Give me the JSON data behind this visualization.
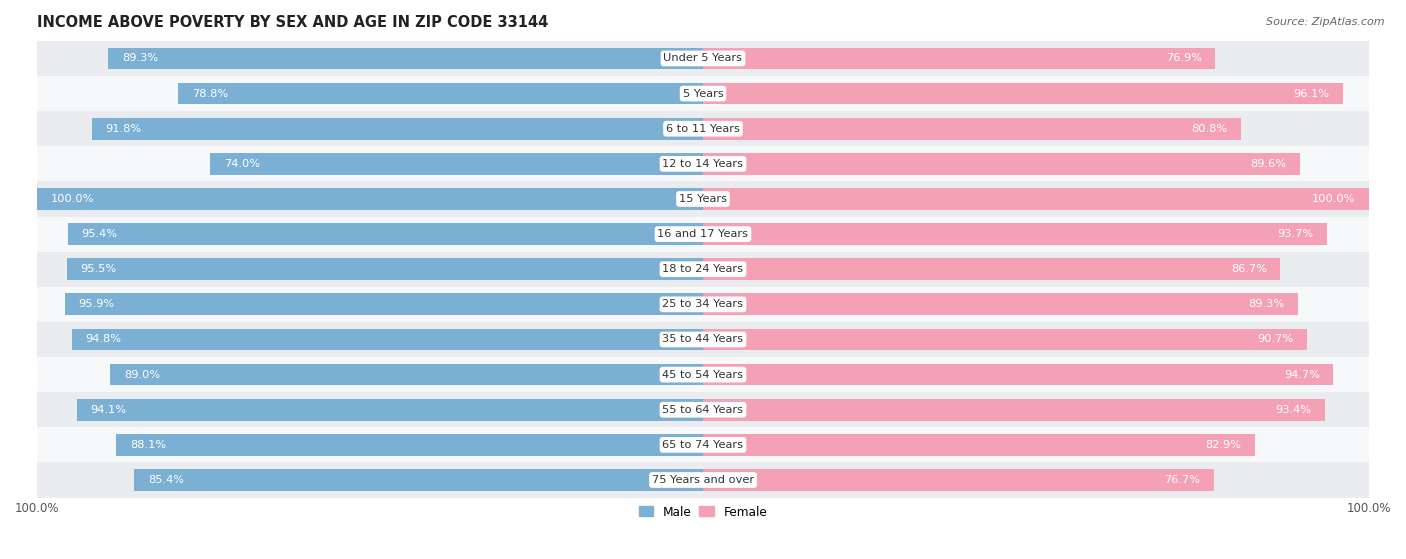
{
  "title": "INCOME ABOVE POVERTY BY SEX AND AGE IN ZIP CODE 33144",
  "source": "Source: ZipAtlas.com",
  "categories": [
    "Under 5 Years",
    "5 Years",
    "6 to 11 Years",
    "12 to 14 Years",
    "15 Years",
    "16 and 17 Years",
    "18 to 24 Years",
    "25 to 34 Years",
    "35 to 44 Years",
    "45 to 54 Years",
    "55 to 64 Years",
    "65 to 74 Years",
    "75 Years and over"
  ],
  "male_values": [
    89.3,
    78.8,
    91.8,
    74.0,
    100.0,
    95.4,
    95.5,
    95.9,
    94.8,
    89.0,
    94.1,
    88.1,
    85.4
  ],
  "female_values": [
    76.9,
    96.1,
    80.8,
    89.6,
    100.0,
    93.7,
    86.7,
    89.3,
    90.7,
    94.7,
    93.4,
    82.9,
    76.7
  ],
  "male_color": "#7bafd4",
  "female_color": "#f4a0b5",
  "bg_row_odd": "#eaecf0",
  "bg_row_even": "#f7f8fa",
  "axis_max": 100.0,
  "bar_height": 0.62,
  "title_fontsize": 10.5,
  "label_fontsize": 8.2,
  "tick_fontsize": 8.5,
  "source_fontsize": 8,
  "cat_label_fontsize": 8.2
}
